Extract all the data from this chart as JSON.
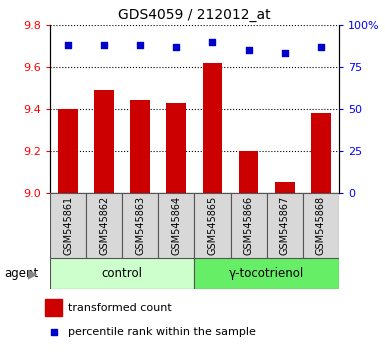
{
  "title": "GDS4059 / 212012_at",
  "samples": [
    "GSM545861",
    "GSM545862",
    "GSM545863",
    "GSM545864",
    "GSM545865",
    "GSM545866",
    "GSM545867",
    "GSM545868"
  ],
  "bar_values": [
    9.4,
    9.49,
    9.44,
    9.43,
    9.62,
    9.2,
    9.05,
    9.38
  ],
  "dot_values": [
    88,
    88,
    88,
    87,
    90,
    85,
    83,
    87
  ],
  "ylim_left": [
    9.0,
    9.8
  ],
  "ylim_right": [
    0,
    100
  ],
  "yticks_left": [
    9.0,
    9.2,
    9.4,
    9.6,
    9.8
  ],
  "yticks_right": [
    0,
    25,
    50,
    75,
    100
  ],
  "bar_color": "#cc0000",
  "dot_color": "#0000cc",
  "group_labels": [
    "control",
    "γ-tocotrienol"
  ],
  "group_colors_light": [
    "#ccffcc",
    "#66ee66"
  ],
  "group_ranges": [
    [
      0,
      4
    ],
    [
      4,
      8
    ]
  ],
  "agent_label": "agent",
  "legend_bar_label": "transformed count",
  "legend_dot_label": "percentile rank within the sample",
  "title_fontsize": 10,
  "tick_fontsize": 8,
  "sample_fontsize": 7,
  "group_fontsize": 8.5,
  "legend_fontsize": 8
}
